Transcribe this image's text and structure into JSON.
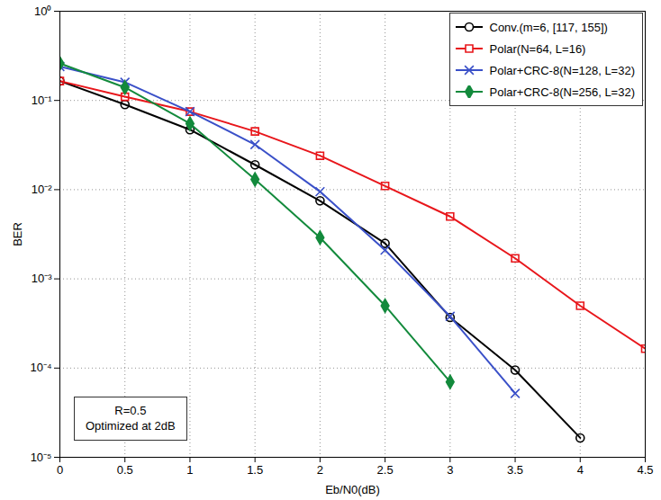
{
  "chart_data": {
    "type": "line",
    "x_label": "Eb/N0(dB)",
    "y_label": "BER",
    "log": "y",
    "grid": true,
    "legend": "top-right",
    "annotation": [
      "R=0.5",
      "Optimized at 2dB"
    ],
    "x": [
      0,
      0.5,
      1,
      1.5,
      2,
      2.5,
      3,
      3.5,
      4,
      4.5
    ],
    "xlim": [
      0,
      4.5
    ],
    "xticks": [
      0,
      0.5,
      1,
      1.5,
      2,
      2.5,
      3,
      3.5,
      4,
      4.5
    ],
    "ylim": [
      1e-05,
      1
    ],
    "yticks": [
      {
        "value": 1e-05,
        "label": "10⁻⁵"
      },
      {
        "value": 0.0001,
        "label": "10⁻⁴"
      },
      {
        "value": 0.001,
        "label": "10⁻³"
      },
      {
        "value": 0.01,
        "label": "10⁻²"
      },
      {
        "value": 0.1,
        "label": "10⁻¹"
      },
      {
        "value": 1,
        "label": "10⁰"
      }
    ],
    "series": [
      {
        "name": "Conv.(m=6, [117, 155])",
        "color": "#000000",
        "marker": "circle",
        "values": [
          0.165,
          0.09,
          0.047,
          0.019,
          0.0075,
          0.0025,
          0.00037,
          9.5e-05,
          1.65e-05,
          null
        ]
      },
      {
        "name": "Polar(N=64, L=16)",
        "color": "#e8161b",
        "marker": "square",
        "values": [
          0.165,
          0.11,
          0.075,
          0.045,
          0.024,
          0.011,
          0.005,
          0.0017,
          0.0005,
          0.000165
        ]
      },
      {
        "name": "Polar+CRC-8(N=128, L=32)",
        "color": "#3a50c8",
        "marker": "times",
        "values": [
          0.24,
          0.16,
          0.075,
          0.032,
          0.0095,
          0.0021,
          0.00038,
          5.2e-05,
          null,
          null
        ]
      },
      {
        "name": "Polar+CRC-8(N=256, L=32)",
        "color": "#138a3c",
        "marker": "diamond",
        "values": [
          0.26,
          0.14,
          0.055,
          0.013,
          0.0029,
          0.0005,
          7e-05,
          null,
          null,
          null
        ]
      }
    ]
  }
}
